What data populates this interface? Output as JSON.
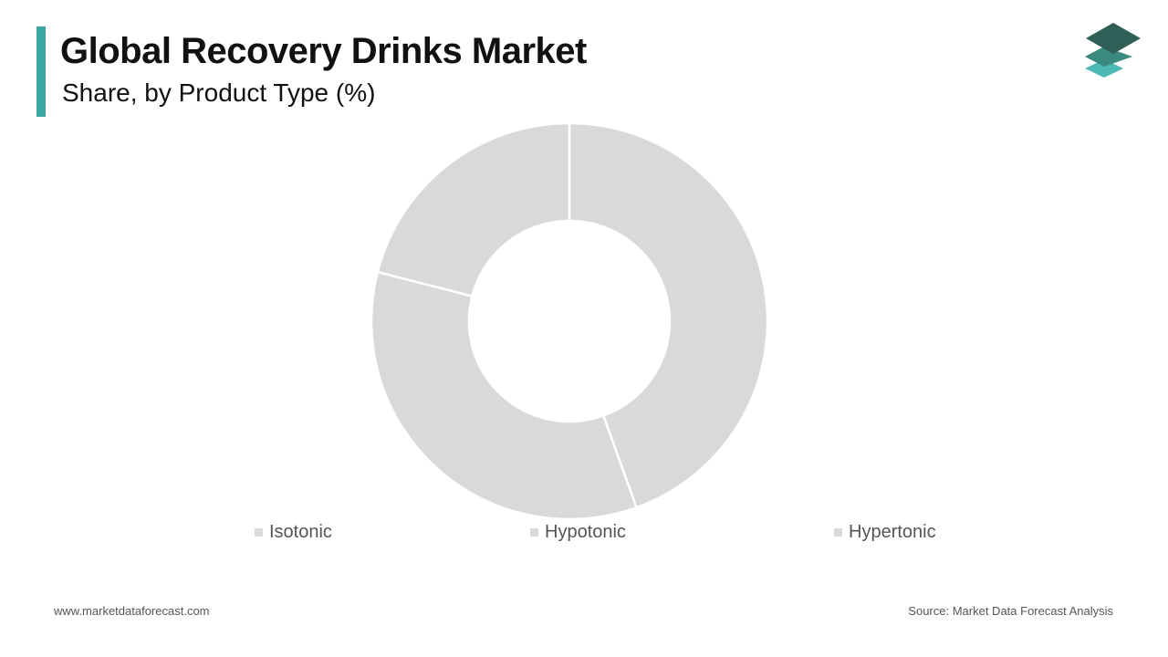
{
  "header": {
    "title": "Global Recovery Drinks Market",
    "subtitle": "Share, by Product Type (%)",
    "accent_color": "#3aa7a3"
  },
  "logo": {
    "icon": "stacked-layers-logo-icon",
    "colors": [
      "#2f5f56",
      "#3a8a80",
      "#4cb8b4"
    ]
  },
  "chart_data": {
    "type": "pie",
    "donut": true,
    "title": "Global Recovery Drinks Market",
    "subtitle": "Share, by Product Type (%)",
    "categories": [
      "Isotonic",
      "Hypotonic",
      "Hypertonic"
    ],
    "values": [
      44.5,
      34.5,
      21
    ],
    "colors": [
      "#d9d9d9",
      "#d9d9d9",
      "#d9d9d9"
    ],
    "legend_position": "bottom"
  },
  "footer": {
    "website": "www.marketdataforecast.com",
    "source": "Source: Market Data Forecast Analysis"
  }
}
